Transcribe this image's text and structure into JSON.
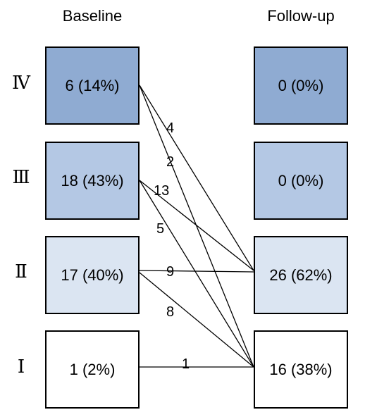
{
  "columns": {
    "baseline": "Baseline",
    "followup": "Follow-up"
  },
  "rows": [
    {
      "grade": "Ⅳ",
      "baseline": "6 (14%)",
      "followup": "0 (0%)",
      "shade": "#8fabd2"
    },
    {
      "grade": "Ⅲ",
      "baseline": "18 (43%)",
      "followup": "0 (0%)",
      "shade": "#b4c8e4"
    },
    {
      "grade": "Ⅱ",
      "baseline": "17 (40%)",
      "followup": "26 (62%)",
      "shade": "#dbe5f2"
    },
    {
      "grade": "Ⅰ",
      "baseline": "1 (2%)",
      "followup": "16 (38%)",
      "shade": "#ffffff"
    }
  ],
  "transitions": [
    {
      "from": "Ⅳ",
      "to": "Ⅱ",
      "count": "4"
    },
    {
      "from": "Ⅳ",
      "to": "Ⅰ",
      "count": "2"
    },
    {
      "from": "Ⅲ",
      "to": "Ⅱ",
      "count": "13"
    },
    {
      "from": "Ⅲ",
      "to": "Ⅰ",
      "count": "5"
    },
    {
      "from": "Ⅱ",
      "to": "Ⅱ",
      "count": "9"
    },
    {
      "from": "Ⅱ",
      "to": "Ⅰ",
      "count": "8"
    },
    {
      "from": "Ⅰ",
      "to": "Ⅰ",
      "count": "1"
    }
  ]
}
